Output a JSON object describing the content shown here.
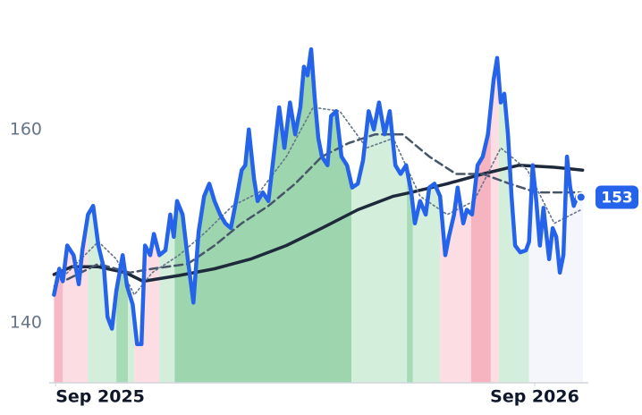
{
  "chart_data": {
    "type": "line",
    "xlim": [
      -0.05,
      13.21
    ],
    "ylim": [
      133.8,
      173.4
    ],
    "xticks": [
      {
        "value": 0,
        "label": "Sep 2025"
      },
      {
        "value": 12,
        "label": "Sep 2026"
      }
    ],
    "yticks": [
      140,
      160
    ],
    "regions": [
      {
        "start": -0.04,
        "end": 0.18,
        "color": "#f5b8c4"
      },
      {
        "start": 0.18,
        "end": 0.81,
        "color": "#fcdde3"
      },
      {
        "start": 0.81,
        "end": 1.52,
        "color": "#d3eedb"
      },
      {
        "start": 1.52,
        "end": 1.81,
        "color": "#a7dbb6"
      },
      {
        "start": 1.81,
        "end": 1.97,
        "color": "#d3eedb"
      },
      {
        "start": 1.97,
        "end": 2.6,
        "color": "#fcdde3"
      },
      {
        "start": 2.6,
        "end": 2.98,
        "color": "#d3eedb"
      },
      {
        "start": 2.98,
        "end": 7.41,
        "color": "#9dd6ae"
      },
      {
        "start": 7.41,
        "end": 8.8,
        "color": "#d3eedb"
      },
      {
        "start": 8.8,
        "end": 8.95,
        "color": "#a7dbb6"
      },
      {
        "start": 8.95,
        "end": 9.63,
        "color": "#d3eedb"
      },
      {
        "start": 9.63,
        "end": 10.41,
        "color": "#fcdde3"
      },
      {
        "start": 10.41,
        "end": 10.9,
        "color": "#f6b4c1"
      },
      {
        "start": 10.9,
        "end": 11.1,
        "color": "#fcdde3"
      },
      {
        "start": 11.1,
        "end": 11.86,
        "color": "#d3eedb"
      },
      {
        "start": 11.86,
        "end": 13.21,
        "color": "#f4f6fb"
      }
    ],
    "series": [
      {
        "color": "#1e293b",
        "line_style": "solid",
        "width": 3.5,
        "x": [
          -0.04,
          0.4,
          1.07,
          1.75,
          2.19,
          3.09,
          3.98,
          4.88,
          5.78,
          6.67,
          7.57,
          8.46,
          8.91,
          9.81,
          10.7,
          11.6,
          12.49,
          13.2
        ],
        "values": [
          145.0,
          145.8,
          145.8,
          145.2,
          144.3,
          144.9,
          145.6,
          146.6,
          148.0,
          149.8,
          151.7,
          153.1,
          153.5,
          154.4,
          155.4,
          156.3,
          156.1,
          155.8
        ]
      },
      {
        "color": "#475569",
        "line_style": "dashed",
        "width": 2.5,
        "x": [
          0.29,
          1.07,
          1.86,
          2.42,
          3.31,
          3.98,
          4.66,
          5.33,
          6.0,
          6.67,
          7.34,
          8.01,
          8.69,
          9.36,
          10.03,
          10.7,
          11.37,
          12.04,
          12.72,
          13.16
        ],
        "values": [
          144.5,
          146.1,
          145.2,
          145.6,
          146.1,
          148.0,
          150.3,
          152.1,
          154.4,
          157.2,
          158.6,
          159.5,
          159.5,
          157.2,
          155.4,
          155.4,
          154.4,
          153.5,
          153.5,
          153.5
        ]
      },
      {
        "color": "#64748b",
        "line_style": "dotted",
        "width": 1.6,
        "x": [
          -0.04,
          0.63,
          1.07,
          1.52,
          1.97,
          2.42,
          3.09,
          3.76,
          4.43,
          5.1,
          5.78,
          6.45,
          7.12,
          7.79,
          8.46,
          9.13,
          9.81,
          10.48,
          11.15,
          11.82,
          12.49,
          13.16
        ],
        "values": [
          143.8,
          146.6,
          148.4,
          146.6,
          142.9,
          145.2,
          147.0,
          149.4,
          152.1,
          153.5,
          157.2,
          162.3,
          161.9,
          158.1,
          159.1,
          153.1,
          151.2,
          152.6,
          158.1,
          155.8,
          150.3,
          151.7
        ]
      },
      {
        "color": "#2563eb",
        "line_style": "solid",
        "width": 4.5,
        "price": true,
        "x": [
          -0.04,
          0.09,
          0.18,
          0.29,
          0.45,
          0.58,
          0.67,
          0.81,
          0.94,
          1.07,
          1.21,
          1.3,
          1.41,
          1.52,
          1.68,
          1.79,
          1.93,
          2.04,
          2.15,
          2.24,
          2.37,
          2.46,
          2.6,
          2.75,
          2.87,
          2.96,
          3.04,
          3.18,
          3.31,
          3.45,
          3.58,
          3.72,
          3.85,
          3.98,
          4.12,
          4.25,
          4.39,
          4.52,
          4.66,
          4.75,
          4.84,
          4.97,
          5.06,
          5.19,
          5.33,
          5.46,
          5.6,
          5.73,
          5.87,
          6.0,
          6.13,
          6.22,
          6.31,
          6.4,
          6.49,
          6.58,
          6.67,
          6.81,
          6.9,
          7.03,
          7.16,
          7.3,
          7.43,
          7.57,
          7.7,
          7.84,
          7.97,
          8.1,
          8.24,
          8.37,
          8.51,
          8.64,
          8.78,
          8.91,
          9.0,
          9.13,
          9.27,
          9.36,
          9.49,
          9.63,
          9.76,
          9.85,
          9.98,
          10.07,
          10.21,
          10.3,
          10.43,
          10.57,
          10.7,
          10.83,
          10.97,
          11.06,
          11.15,
          11.24,
          11.33,
          11.42,
          11.51,
          11.64,
          11.78,
          11.86,
          11.95,
          12.04,
          12.13,
          12.22,
          12.36,
          12.45,
          12.54,
          12.63,
          12.72,
          12.81,
          12.89,
          12.98,
          13.07,
          13.16
        ],
        "values": [
          142.9,
          145.6,
          144.3,
          148.0,
          147.0,
          144.0,
          147.5,
          151.2,
          152.1,
          148.0,
          145.6,
          140.6,
          139.4,
          143.3,
          147.0,
          143.8,
          141.9,
          137.8,
          137.8,
          148.0,
          147.0,
          149.2,
          147.0,
          147.5,
          151.2,
          148.9,
          152.6,
          151.2,
          146.6,
          142.1,
          149.4,
          153.1,
          154.4,
          152.6,
          151.2,
          150.3,
          149.8,
          152.6,
          155.8,
          156.3,
          160.0,
          154.9,
          152.6,
          153.5,
          152.6,
          157.2,
          162.3,
          158.1,
          162.8,
          159.5,
          162.3,
          166.5,
          165.6,
          168.3,
          163.2,
          159.1,
          157.2,
          156.3,
          161.4,
          161.9,
          157.2,
          156.3,
          154.0,
          154.4,
          156.8,
          161.9,
          160.0,
          162.8,
          159.5,
          161.9,
          156.3,
          155.4,
          156.3,
          153.5,
          150.3,
          152.6,
          151.2,
          154.0,
          154.4,
          153.1,
          147.0,
          148.9,
          151.2,
          154.0,
          150.3,
          151.7,
          151.2,
          156.3,
          157.2,
          159.5,
          165.1,
          167.4,
          162.8,
          163.7,
          159.5,
          153.1,
          148.0,
          147.3,
          147.5,
          148.4,
          156.3,
          152.6,
          148.0,
          151.9,
          146.6,
          149.8,
          148.9,
          145.2,
          147.0,
          157.2,
          154.0,
          152.1,
          153.1,
          153
        ]
      }
    ]
  }
}
